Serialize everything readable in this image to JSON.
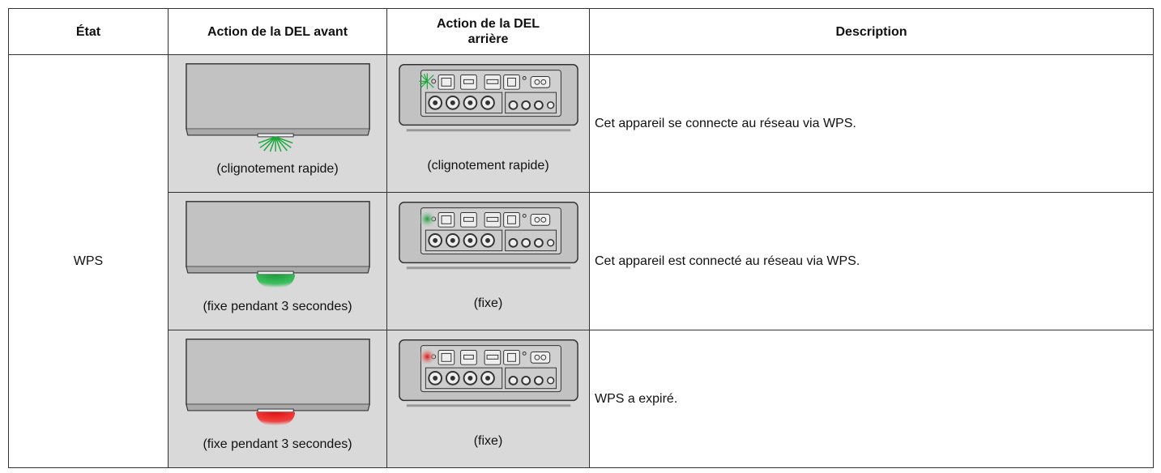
{
  "table": {
    "header": [
      "État",
      "Action de la DEL avant",
      "Action de la DEL arrière",
      "Description"
    ],
    "state": "WPS",
    "rows": [
      [
        "(clignotement rapide)",
        "(clignotement rapide)",
        "Cet appareil se connecte au réseau via WPS."
      ],
      [
        "(fixe pendant 3 secondes)",
        "(fixe)",
        "Cet appareil est connecté au réseau via WPS."
      ],
      [
        "(fixe pendant 3 secondes)",
        "(fixe)",
        "WPS a expiré."
      ]
    ]
  }
}
